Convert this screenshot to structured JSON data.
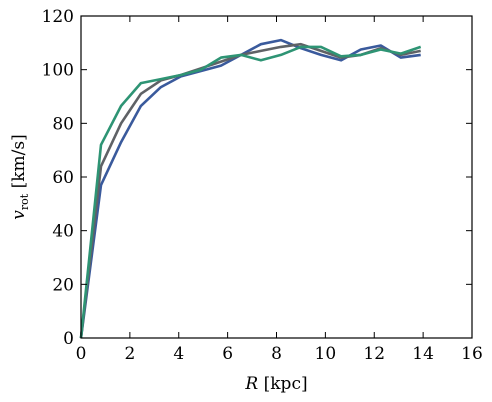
{
  "chart_data": {
    "type": "line",
    "xlabel": "R [kpc]",
    "xlabel_parts": {
      "var": "R",
      "unit": " [kpc]"
    },
    "ylabel": "v_rot [km/s]",
    "ylabel_parts": {
      "var": "v",
      "sub": "rot",
      "unit": " [km/s]"
    },
    "xlim": [
      0,
      16
    ],
    "ylim": [
      0,
      120
    ],
    "xticks": [
      0,
      2,
      4,
      6,
      8,
      10,
      12,
      14,
      16
    ],
    "yticks": [
      0,
      20,
      40,
      60,
      80,
      100,
      120
    ],
    "grid": false,
    "legend": false,
    "x": [
      0,
      0.82,
      1.64,
      2.45,
      3.27,
      4.09,
      4.91,
      5.73,
      6.55,
      7.36,
      8.18,
      9.0,
      9.82,
      10.64,
      11.45,
      12.27,
      13.09,
      13.9
    ],
    "series": [
      {
        "color": "#3a5a9c",
        "values": [
          0,
          57,
          73,
          86.5,
          93.5,
          97.5,
          99.5,
          101.5,
          105.5,
          109.5,
          111,
          108,
          105.5,
          103.5,
          107.5,
          109,
          104.5,
          105.5
        ]
      },
      {
        "color": "#5f6266",
        "values": [
          0,
          64,
          80,
          91,
          96,
          98,
          100.5,
          103,
          105.5,
          107,
          108.5,
          109.5,
          107,
          104.5,
          105.5,
          108,
          105.5,
          107
        ]
      },
      {
        "color": "#2e9474",
        "values": [
          0,
          72,
          86.5,
          95,
          96.5,
          98,
          100,
          104.5,
          105.5,
          103.5,
          105.5,
          108.5,
          108.5,
          105,
          105.5,
          107.5,
          106,
          108.5
        ]
      }
    ]
  }
}
